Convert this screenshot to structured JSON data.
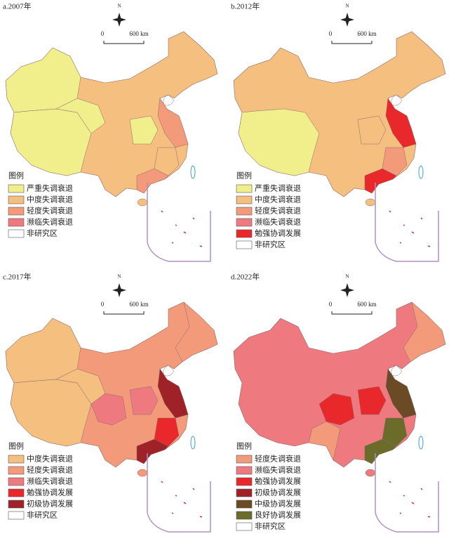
{
  "panels": [
    {
      "label": "a.2007年",
      "north": "N",
      "scale_start": "0",
      "scale_end": "600 km",
      "legend_title": "图例",
      "legend": [
        {
          "label": "严重失调衰退",
          "color": "#f0ef8c"
        },
        {
          "label": "中度失调衰退",
          "color": "#f5bf80"
        },
        {
          "label": "轻度失调衰退",
          "color": "#f29a7a"
        },
        {
          "label": "濒临失调衰退",
          "color": "#ee7a80"
        },
        {
          "label": "非研究区",
          "color": "#ffffff"
        }
      ]
    },
    {
      "label": "b.2012年",
      "north": "N",
      "scale_start": "0",
      "scale_end": "600 km",
      "legend_title": "图例",
      "legend": [
        {
          "label": "严重失调衰退",
          "color": "#f0ef8c"
        },
        {
          "label": "中度失调衰退",
          "color": "#f5bf80"
        },
        {
          "label": "轻度失调衰退",
          "color": "#f29a7a"
        },
        {
          "label": "濒临失调衰退",
          "color": "#ee7a80"
        },
        {
          "label": "勉强协调发展",
          "color": "#e8282a"
        },
        {
          "label": "非研究区",
          "color": "#ffffff"
        }
      ]
    },
    {
      "label": "c.2017年",
      "north": "N",
      "scale_start": "0",
      "scale_end": "600 km",
      "legend_title": "图例",
      "legend": [
        {
          "label": "中度失调衰退",
          "color": "#f5bf80"
        },
        {
          "label": "轻度失调衰退",
          "color": "#f29a7a"
        },
        {
          "label": "濒临失调衰退",
          "color": "#ee7a80"
        },
        {
          "label": "勉强协调发展",
          "color": "#e8282a"
        },
        {
          "label": "初级协调发展",
          "color": "#9e2228"
        },
        {
          "label": "非研究区",
          "color": "#ffffff"
        }
      ]
    },
    {
      "label": "d.2022年",
      "north": "N",
      "scale_start": "0",
      "scale_end": "600 km",
      "legend_title": "图例",
      "legend": [
        {
          "label": "轻度失调衰退",
          "color": "#f29a7a"
        },
        {
          "label": "濒临失调衰退",
          "color": "#ee7a80"
        },
        {
          "label": "勉强协调发展",
          "color": "#e8282a"
        },
        {
          "label": "初级协调发展",
          "color": "#9e2228"
        },
        {
          "label": "中级协调发展",
          "color": "#6b4a26"
        },
        {
          "label": "良好协调发展",
          "color": "#6b6b2a"
        },
        {
          "label": "非研究区",
          "color": "#ffffff"
        }
      ]
    }
  ]
}
